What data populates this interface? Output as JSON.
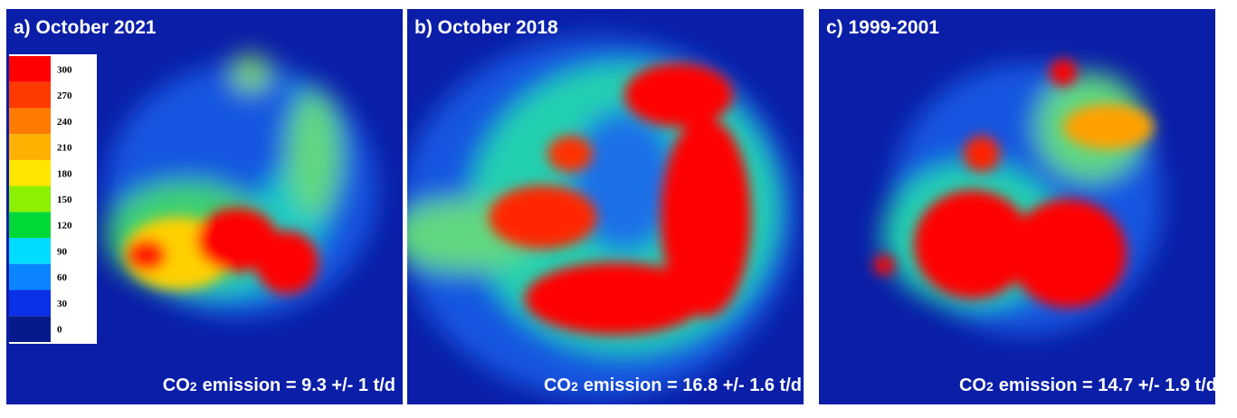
{
  "panels": [
    {
      "title": "a) October 2021",
      "emission": {
        "species": "CO",
        "subscript": "2",
        "text": "emission = 9.3 +/- 1 t/d"
      }
    },
    {
      "title": "b) October 2018",
      "emission": {
        "species": "CO",
        "subscript": "2",
        "text": "emission = 16.8 +/- 1.6 t/d"
      }
    },
    {
      "title": "c) 1999-2001",
      "emission": {
        "species": "CO",
        "subscript": "2",
        "text": "emission = 14.7 +/- 1.9 t/d"
      }
    }
  ],
  "colorbar": {
    "levels": [
      {
        "value": 300,
        "color": "#ff0000"
      },
      {
        "value": 270,
        "color": "#ff3a00"
      },
      {
        "value": 240,
        "color": "#ff7a00"
      },
      {
        "value": 210,
        "color": "#ffb000"
      },
      {
        "value": 180,
        "color": "#ffe600"
      },
      {
        "value": 150,
        "color": "#8cf000"
      },
      {
        "value": 120,
        "color": "#00d838"
      },
      {
        "value": 90,
        "color": "#00dcff"
      },
      {
        "value": 60,
        "color": "#0a84ff"
      },
      {
        "value": 30,
        "color": "#0a30e8"
      },
      {
        "value": 0,
        "color": "#061a8c"
      }
    ]
  }
}
